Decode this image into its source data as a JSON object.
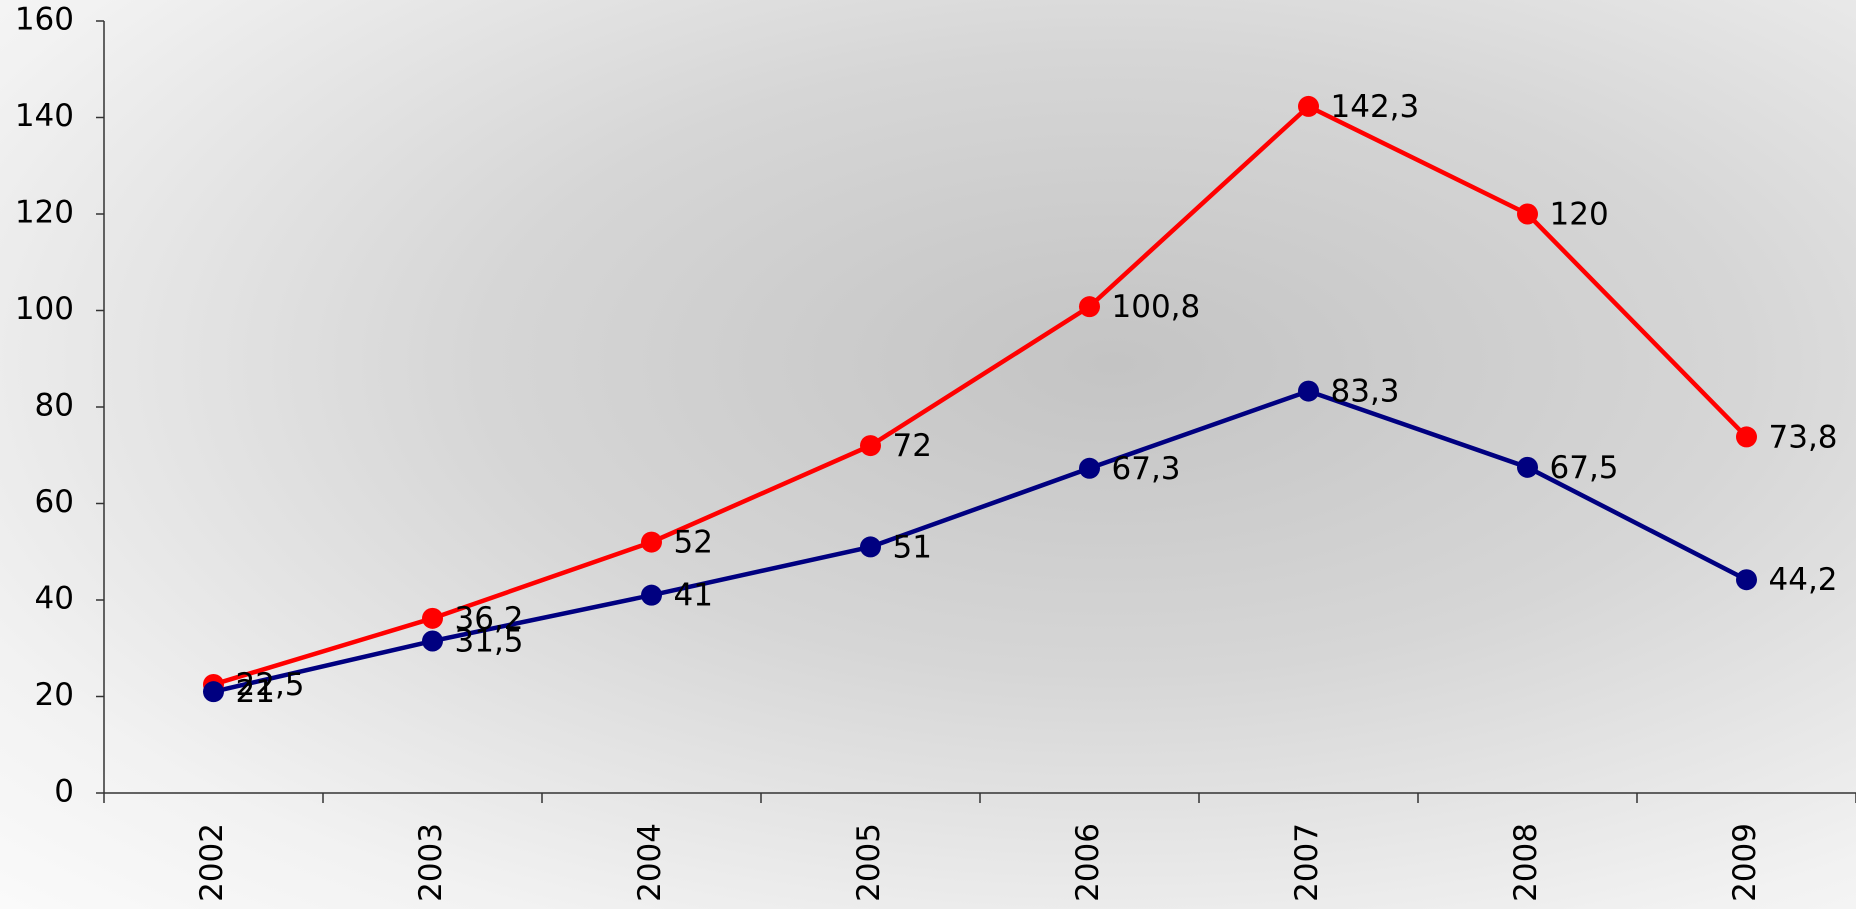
{
  "chart_data": {
    "type": "line",
    "categories": [
      "2002",
      "2003",
      "2004",
      "2005",
      "2006",
      "2007",
      "2008",
      "2009"
    ],
    "series": [
      {
        "color": "#ff0000",
        "values": [
          22.5,
          36.2,
          52,
          72,
          100.8,
          142.3,
          120,
          73.8
        ],
        "value_labels": [
          "22,5",
          "36,2",
          "52",
          "72",
          "100,8",
          "142,3",
          "120",
          "73,8"
        ]
      },
      {
        "color": "#000080",
        "values": [
          21,
          31.5,
          41,
          51,
          67.3,
          83.3,
          67.5,
          44.2
        ],
        "value_labels": [
          "21",
          "31,5",
          "41",
          "51",
          "67,3",
          "83,3",
          "67,5",
          "44,2"
        ]
      }
    ],
    "ylim": [
      0,
      160
    ],
    "yticks": [
      0,
      20,
      40,
      60,
      80,
      100,
      120,
      140,
      160
    ],
    "grid": false
  }
}
